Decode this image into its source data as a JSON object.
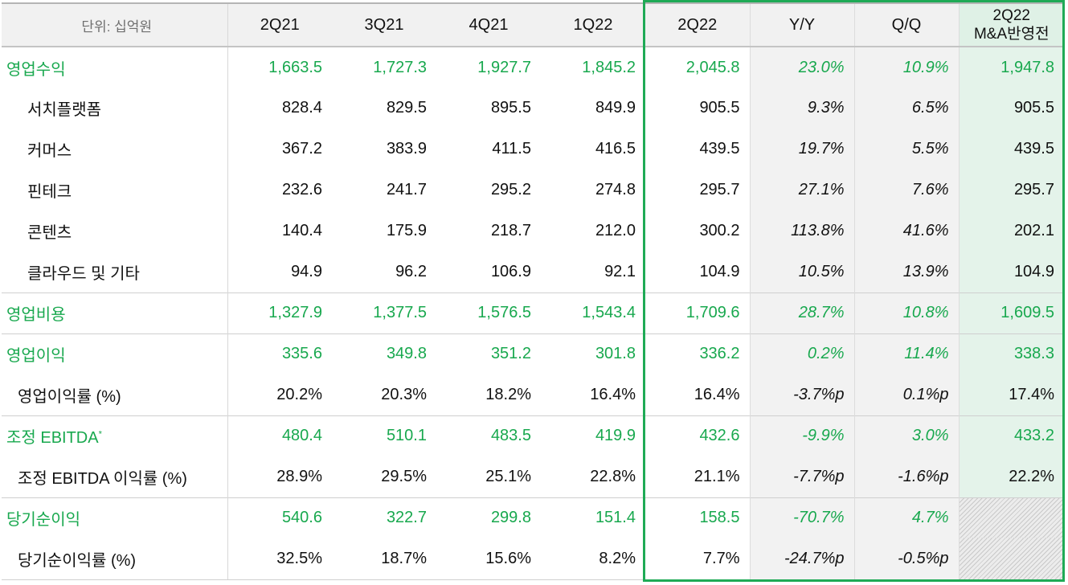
{
  "unit_label": "단위: 십억원",
  "columns": [
    "2Q21",
    "3Q21",
    "4Q21",
    "1Q22",
    "2Q22",
    "Y/Y",
    "Q/Q"
  ],
  "ma_header": {
    "line1": "2Q22",
    "line2": "M&A반영전"
  },
  "accent_color": "#18a84e",
  "rows": [
    {
      "label": "영업수익",
      "values": [
        "1,663.5",
        "1,727.3",
        "1,927.7",
        "1,845.2",
        "2,045.8",
        "23.0%",
        "10.9%",
        "1,947.8"
      ]
    },
    {
      "label": "서치플랫폼",
      "values": [
        "828.4",
        "829.5",
        "895.5",
        "849.9",
        "905.5",
        "9.3%",
        "6.5%",
        "905.5"
      ]
    },
    {
      "label": "커머스",
      "values": [
        "367.2",
        "383.9",
        "411.5",
        "416.5",
        "439.5",
        "19.7%",
        "5.5%",
        "439.5"
      ]
    },
    {
      "label": "핀테크",
      "values": [
        "232.6",
        "241.7",
        "295.2",
        "274.8",
        "295.7",
        "27.1%",
        "7.6%",
        "295.7"
      ]
    },
    {
      "label": "콘텐츠",
      "values": [
        "140.4",
        "175.9",
        "218.7",
        "212.0",
        "300.2",
        "113.8%",
        "41.6%",
        "202.1"
      ]
    },
    {
      "label": "클라우드 및 기타",
      "values": [
        "94.9",
        "96.2",
        "106.9",
        "92.1",
        "104.9",
        "10.5%",
        "13.9%",
        "104.9"
      ]
    },
    {
      "label": "영업비용",
      "values": [
        "1,327.9",
        "1,377.5",
        "1,576.5",
        "1,543.4",
        "1,709.6",
        "28.7%",
        "10.8%",
        "1,609.5"
      ]
    },
    {
      "label": "영업이익",
      "values": [
        "335.6",
        "349.8",
        "351.2",
        "301.8",
        "336.2",
        "0.2%",
        "11.4%",
        "338.3"
      ]
    },
    {
      "label": "영업이익률 (%)",
      "values": [
        "20.2%",
        "20.3%",
        "18.2%",
        "16.4%",
        "16.4%",
        "-3.7%p",
        "0.1%p",
        "17.4%"
      ]
    },
    {
      "label": "조정 EBITDA",
      "footnote": "*",
      "values": [
        "480.4",
        "510.1",
        "483.5",
        "419.9",
        "432.6",
        "-9.9%",
        "3.0%",
        "433.2"
      ]
    },
    {
      "label": "조정 EBITDA 이익률 (%)",
      "values": [
        "28.9%",
        "29.5%",
        "25.1%",
        "22.8%",
        "21.1%",
        "-7.7%p",
        "-1.6%p",
        "22.2%"
      ]
    },
    {
      "label": "당기순이익",
      "values": [
        "540.6",
        "322.7",
        "299.8",
        "151.4",
        "158.5",
        "-70.7%",
        "4.7%",
        ""
      ]
    },
    {
      "label": "당기순이익률 (%)",
      "values": [
        "32.5%",
        "18.7%",
        "15.6%",
        "8.2%",
        "7.7%",
        "-24.7%p",
        "-0.5%p",
        ""
      ]
    }
  ]
}
